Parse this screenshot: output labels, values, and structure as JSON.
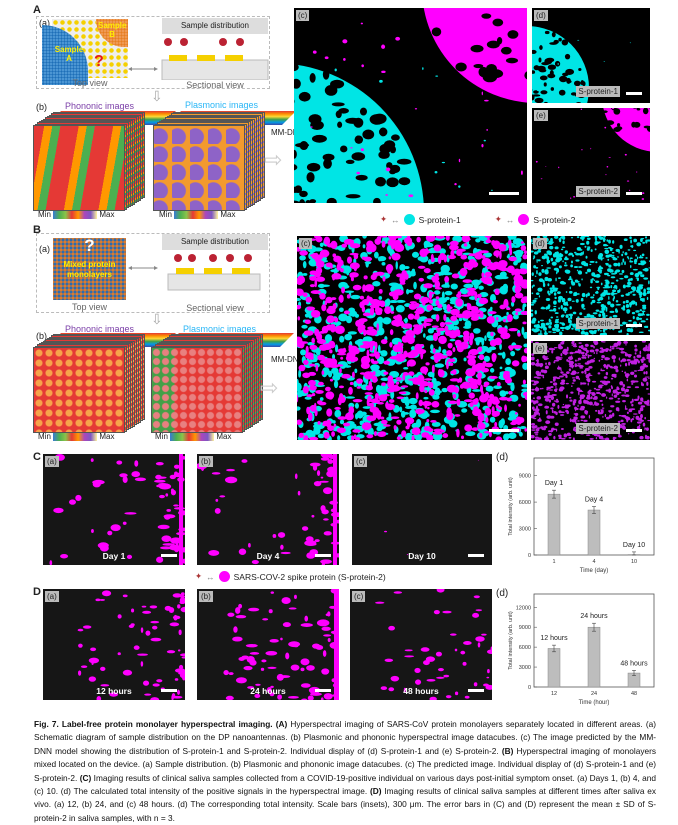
{
  "panels": {
    "A": "A",
    "B": "B",
    "C": "C",
    "D": "D"
  },
  "sub": {
    "a": "(a)",
    "b": "(b)",
    "c": "(c)",
    "d": "(d)",
    "e": "(e)"
  },
  "schematic": {
    "sample_distribution": "Sample distribution",
    "top_view": "Top view",
    "sectional_view": "Sectional view",
    "sample_a": "Sample A",
    "sample_b": "Sample B",
    "question": "?",
    "mixed": "Mixed protein monolayers",
    "phononic": "Phononic images",
    "plasmonic": "Plasmonic images",
    "min": "Min",
    "max": "Max",
    "mmdnn": "MM-DNN"
  },
  "colors": {
    "s1": "#00e5e5",
    "s2": "#ff00ff",
    "phononic": "#7b3fa8",
    "plasmonic": "#29b6f6"
  },
  "labels": {
    "s1": "S-protein-1",
    "s2": "S-protein-2",
    "spike": "SARS-COV-2 spike protein (S-protein-2)"
  },
  "C_panels": [
    "Day 1",
    "Day 4",
    "Day 10"
  ],
  "D_panels": [
    "12 hours",
    "24 hours",
    "48 hours"
  ],
  "chart_data": [
    {
      "type": "bar",
      "categories": [
        "1",
        "4",
        "10"
      ],
      "values": [
        6900,
        5100,
        50
      ],
      "errors": [
        450,
        400,
        300
      ],
      "data_labels": [
        "Day 1",
        "Day 4",
        "Day 10"
      ],
      "xlabel": "Time (day)",
      "ylabel": "Total intensity (arb. unit)",
      "ylim": [
        0,
        11000
      ],
      "yticks": [
        0,
        3000,
        6000,
        9000
      ],
      "bar_color": "#bdbdbd"
    },
    {
      "type": "bar",
      "categories": [
        "12",
        "24",
        "48"
      ],
      "values": [
        5800,
        9000,
        2100
      ],
      "errors": [
        500,
        600,
        400
      ],
      "data_labels": [
        "12 hours",
        "24 hours",
        "48 hours"
      ],
      "xlabel": "Time (hour)",
      "ylabel": "Total intensity (arb. unit)",
      "ylim": [
        0,
        14000
      ],
      "yticks": [
        0,
        3000,
        6000,
        9000,
        12000
      ],
      "bar_color": "#bdbdbd"
    }
  ],
  "caption": [
    {
      "b": true,
      "t": "Fig. 7. Label-free protein monolayer hyperspectral imaging. (A) "
    },
    {
      "b": false,
      "t": "Hyperspectral imaging of SARS-CoV protein monolayers separately located in different areas. (a) Schematic diagram of sample distribution on the DP nanoantennas. (b) Plasmonic and phononic hyperspectral image datacubes. (c) The image predicted by the MM-DNN model showing the distribution of S-protein-1 and S-protein-2. Individual display of (d) S-protein-1 and (e) S-protein-2. "
    },
    {
      "b": true,
      "t": "(B) "
    },
    {
      "b": false,
      "t": "Hyperspectral imaging of monolayers mixed located on the device. (a) Sample distribution. (b) Plasmonic and phononic image datacubes. (c) The predicted image. Individual display of (d) S-protein-1 and (e) S-protein-2. "
    },
    {
      "b": true,
      "t": "(C) "
    },
    {
      "b": false,
      "t": "Imaging results of clinical saliva samples collected from a COVID-19-positive individual on various days post-initial symptom onset. (a) Days 1, (b) 4, and (c) 10. (d) The calculated total intensity of the positive signals in the hyperspectral image. "
    },
    {
      "b": true,
      "t": "(D) "
    },
    {
      "b": false,
      "t": "Imaging results of clinical saliva samples at different times after saliva ex vivo. (a) 12, (b) 24, and (c) 48 hours. (d) The corresponding total intensity. Scale bars (insets), 300 μm. The error bars in (C) and (D) represent the mean ± SD of S-protein-2 in saliva samples, with n = 3."
    }
  ]
}
